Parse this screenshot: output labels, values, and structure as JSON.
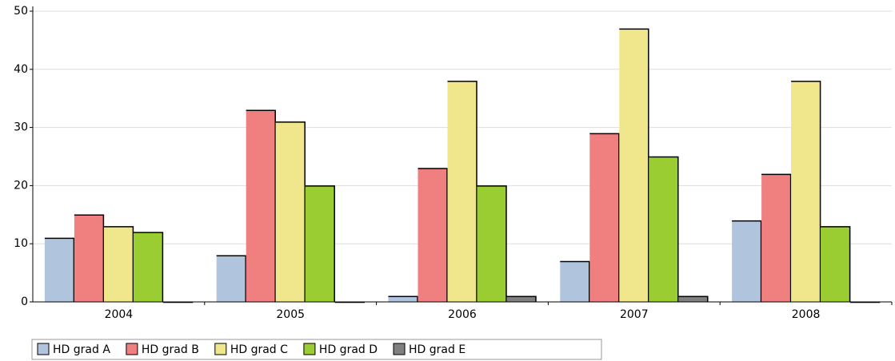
{
  "chart_data": {
    "type": "bar",
    "categories": [
      "2004",
      "2005",
      "2006",
      "2007",
      "2008"
    ],
    "series": [
      {
        "name": "HD grad A",
        "color": "#b0c4de",
        "values": [
          11,
          8,
          1,
          7,
          14
        ]
      },
      {
        "name": "HD grad B",
        "color": "#f08080",
        "values": [
          15,
          33,
          23,
          29,
          22
        ]
      },
      {
        "name": "HD grad C",
        "color": "#f0e68c",
        "values": [
          13,
          31,
          38,
          47,
          38
        ]
      },
      {
        "name": "HD grad D",
        "color": "#9acd32",
        "values": [
          12,
          20,
          20,
          25,
          13
        ]
      },
      {
        "name": "HD grad E",
        "color": "#808080",
        "values": [
          0,
          0,
          1,
          1,
          0
        ]
      }
    ],
    "ylim": [
      0,
      50
    ],
    "yticks": [
      0,
      10,
      20,
      30,
      40,
      50
    ],
    "grid": true
  }
}
